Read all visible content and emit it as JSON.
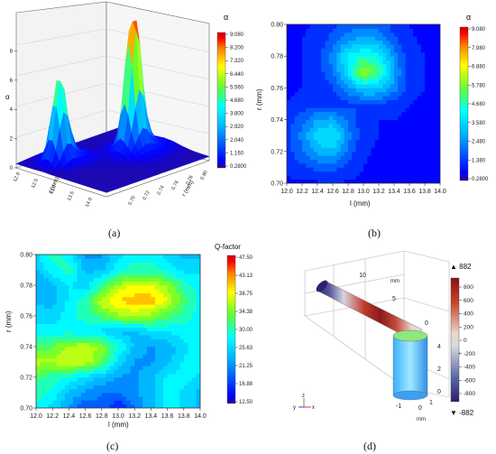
{
  "chart_data": [
    {
      "type": "surface",
      "panel_label": "(a)",
      "xlabel": "l (mm)",
      "ylabel": "r (mm)",
      "zlabel": "α",
      "x_ticks": [
        "12.0",
        "12.5",
        "13.0",
        "13.5",
        "14.0"
      ],
      "y_ticks": [
        "0.70",
        "0.72",
        "0.74",
        "0.76",
        "0.78",
        "0.80"
      ],
      "z_ticks": [
        "0",
        "2",
        "4",
        "6",
        "8"
      ],
      "colorbar_title": "α",
      "colorbar_ticks": [
        "9.080",
        "8.200",
        "7.320",
        "6.440",
        "5.560",
        "4.680",
        "3.800",
        "2.920",
        "2.040",
        "1.160",
        "0.2800"
      ],
      "peaks": [
        {
          "l": 12.5,
          "r": 0.72,
          "alpha": 5.4
        },
        {
          "l": 13.0,
          "r": 0.77,
          "alpha": 9.08
        }
      ],
      "zlim": [
        0,
        9.08
      ]
    },
    {
      "type": "heatmap",
      "panel_label": "(b)",
      "xlabel": "l (mm)",
      "ylabel": "r (mm)",
      "x_ticks": [
        "12.0",
        "12.2",
        "12.4",
        "12.6",
        "12.8",
        "13.0",
        "13.2",
        "13.4",
        "13.6",
        "13.8",
        "14.0"
      ],
      "y_ticks": [
        "0.70",
        "0.72",
        "0.74",
        "0.76",
        "0.78",
        "0.80"
      ],
      "xlim": [
        12.0,
        14.0
      ],
      "ylim": [
        0.7,
        0.8
      ],
      "colorbar_title": "α",
      "colorbar_ticks": [
        "9.080",
        "7.980",
        "6.880",
        "5.780",
        "4.680",
        "3.580",
        "2.480",
        "1.380",
        "0.2800"
      ],
      "x": [
        12.0,
        12.2,
        12.4,
        12.6,
        12.8,
        13.0,
        13.2,
        13.4,
        13.6,
        13.8,
        14.0
      ],
      "y": [
        0.7,
        0.71,
        0.72,
        0.73,
        0.74,
        0.75,
        0.76,
        0.77,
        0.78,
        0.79,
        0.8
      ],
      "z": [
        [
          1.0,
          1.0,
          1.0,
          1.1,
          1.0,
          1.0,
          1.0,
          1.0,
          1.0,
          1.0,
          1.0
        ],
        [
          1.2,
          1.5,
          1.8,
          1.9,
          1.4,
          1.1,
          1.0,
          1.0,
          1.0,
          1.0,
          1.0
        ],
        [
          1.4,
          2.1,
          3.0,
          3.2,
          2.0,
          1.2,
          1.0,
          1.0,
          1.0,
          1.0,
          1.0
        ],
        [
          1.5,
          2.4,
          3.6,
          4.0,
          2.4,
          1.3,
          1.1,
          1.0,
          1.0,
          1.0,
          1.0
        ],
        [
          1.3,
          2.0,
          2.8,
          3.0,
          2.1,
          1.3,
          1.1,
          1.1,
          1.0,
          1.0,
          1.0
        ],
        [
          1.1,
          1.3,
          1.4,
          1.4,
          1.5,
          1.7,
          1.6,
          1.3,
          1.1,
          1.0,
          1.0
        ],
        [
          1.0,
          1.1,
          1.2,
          1.6,
          2.5,
          3.5,
          3.4,
          2.5,
          1.4,
          1.1,
          1.0
        ],
        [
          1.0,
          1.1,
          1.3,
          2.2,
          3.8,
          6.2,
          5.0,
          2.8,
          1.4,
          1.1,
          1.0
        ],
        [
          1.0,
          1.1,
          1.4,
          2.5,
          4.0,
          4.6,
          4.2,
          2.5,
          1.3,
          1.1,
          1.0
        ],
        [
          1.0,
          1.1,
          1.3,
          1.9,
          2.7,
          3.1,
          2.8,
          1.8,
          1.2,
          1.0,
          1.0
        ],
        [
          1.0,
          1.0,
          1.2,
          1.5,
          1.8,
          2.0,
          1.9,
          1.4,
          1.1,
          1.0,
          1.0
        ]
      ],
      "zlim": [
        0.28,
        9.08
      ]
    },
    {
      "type": "heatmap",
      "panel_label": "(c)",
      "xlabel": "l (mm)",
      "ylabel": "r (mm)",
      "x_ticks": [
        "12.0",
        "12.2",
        "12.4",
        "12.6",
        "12.8",
        "13.0",
        "13.2",
        "13.4",
        "13.6",
        "13.8",
        "14.0"
      ],
      "y_ticks": [
        "0.70",
        "0.72",
        "0.74",
        "0.76",
        "0.78",
        "0.80"
      ],
      "xlim": [
        12.0,
        14.0
      ],
      "ylim": [
        0.7,
        0.8
      ],
      "colorbar_title": "Q-factor",
      "colorbar_ticks": [
        "47.50",
        "43.13",
        "38.75",
        "34.38",
        "30.00",
        "25.63",
        "21.25",
        "16.88",
        "12.50"
      ],
      "x": [
        12.0,
        12.2,
        12.4,
        12.6,
        12.8,
        13.0,
        13.2,
        13.4,
        13.6,
        13.8,
        14.0
      ],
      "y": [
        0.7,
        0.71,
        0.72,
        0.73,
        0.74,
        0.75,
        0.76,
        0.77,
        0.78,
        0.79,
        0.8
      ],
      "z": [
        [
          28,
          26,
          22,
          18,
          20,
          16,
          20,
          24,
          28,
          26,
          24
        ],
        [
          30,
          28,
          24,
          22,
          20,
          20,
          22,
          24,
          28,
          26,
          24
        ],
        [
          32,
          30,
          28,
          26,
          24,
          22,
          22,
          24,
          27,
          28,
          26
        ],
        [
          36,
          36,
          37,
          37,
          33,
          26,
          22,
          22,
          24,
          27,
          28
        ],
        [
          32,
          33,
          36,
          37,
          35,
          29,
          24,
          22,
          23,
          26,
          28
        ],
        [
          28,
          28,
          28,
          27,
          26,
          24,
          24,
          26,
          27,
          28,
          28
        ],
        [
          26,
          25,
          28,
          30,
          32,
          35,
          36,
          35,
          32,
          30,
          28
        ],
        [
          24,
          24,
          27,
          30,
          37,
          40,
          41,
          41,
          38,
          32,
          28
        ],
        [
          22,
          24,
          27,
          25,
          31,
          36,
          38,
          38,
          35,
          30,
          28
        ],
        [
          24,
          28,
          30,
          24,
          24,
          28,
          30,
          30,
          28,
          26,
          26
        ],
        [
          26,
          30,
          28,
          22,
          22,
          26,
          28,
          28,
          26,
          24,
          24
        ]
      ],
      "zlim": [
        12.5,
        47.5
      ]
    },
    {
      "type": "3d-field",
      "panel_label": "(d)",
      "colorbar_max_label": "▲ 882",
      "colorbar_min_label": "▼ -882",
      "colorbar_ticks": [
        "800",
        "600",
        "400",
        "200",
        "0",
        "-200",
        "-400",
        "-600",
        "-800"
      ],
      "zlim": [
        -882,
        882
      ],
      "axis_labels": {
        "top": "mm",
        "top_ticks": [
          "10",
          "5",
          "0"
        ],
        "side": "mm",
        "side_ticks": [
          "4",
          "2",
          "0"
        ],
        "bottom": "mm",
        "bottom_ticks": [
          "1",
          "0",
          "-1"
        ]
      },
      "triad": {
        "z": "z",
        "y": "y",
        "x": "x"
      }
    }
  ]
}
